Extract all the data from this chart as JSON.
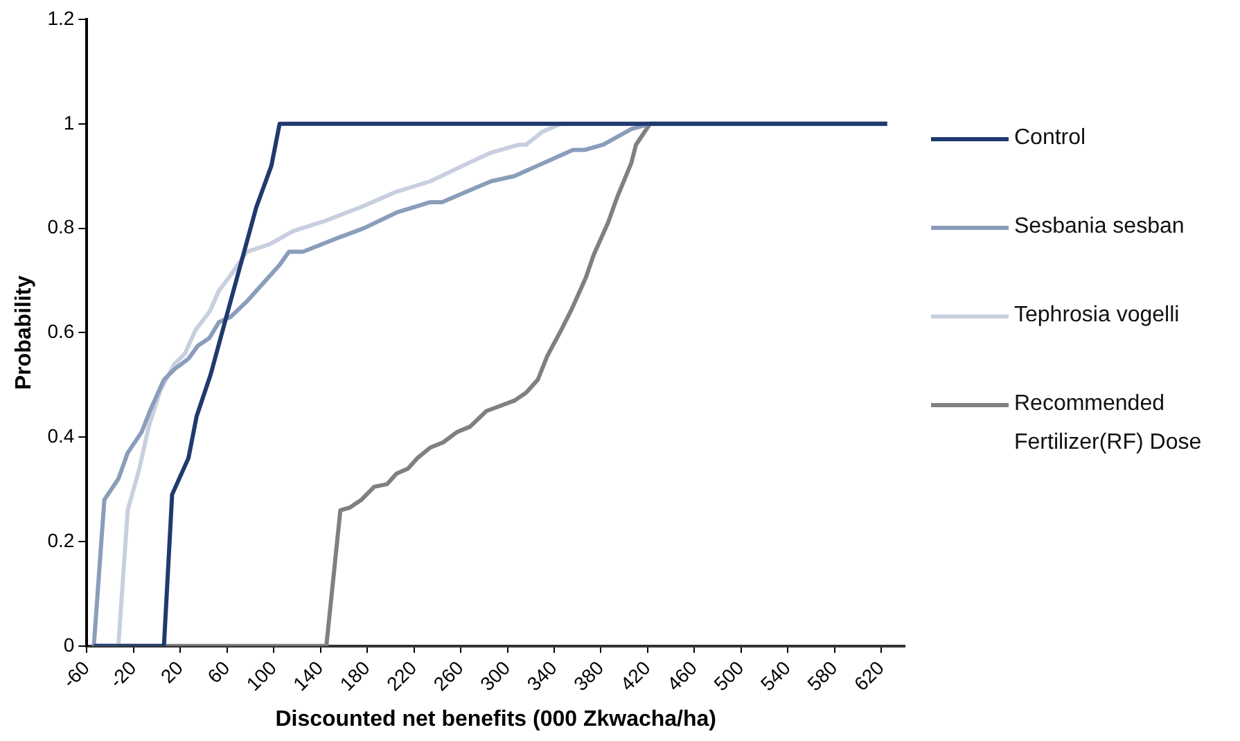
{
  "chart_data": {
    "type": "line",
    "xlabel": "Discounted net benefits (000 Zkwacha/ha)",
    "ylabel": "Probability",
    "xlim": [
      -60,
      640
    ],
    "xticks": [
      -60,
      -20,
      20,
      60,
      100,
      140,
      180,
      220,
      260,
      300,
      340,
      380,
      420,
      460,
      500,
      540,
      580,
      620
    ],
    "ylim": [
      0,
      1.2
    ],
    "yticks": [
      0,
      0.2,
      0.4,
      0.6,
      0.8,
      1,
      1.2
    ],
    "grid": false,
    "legend": "right",
    "marker": "none",
    "line_style": "solid",
    "series": [
      {
        "name": "Control",
        "color": "#1f3a6e",
        "x": [
          -54,
          6,
          13,
          27,
          34,
          46,
          63,
          85,
          98,
          105,
          625
        ],
        "values": [
          0,
          0,
          0.29,
          0.36,
          0.44,
          0.52,
          0.66,
          0.84,
          0.92,
          1,
          1
        ]
      },
      {
        "name": "Sesbania sesban",
        "color": "#8a9dbb",
        "x": [
          -54,
          -45,
          -33,
          -25,
          -13,
          -6,
          6,
          15,
          27,
          35,
          45,
          53,
          63,
          77,
          105,
          113,
          125,
          153,
          177,
          205,
          234,
          244,
          265,
          286,
          306,
          326,
          346,
          356,
          366,
          382,
          406,
          422,
          625
        ],
        "values": [
          0,
          0.28,
          0.32,
          0.37,
          0.41,
          0.45,
          0.51,
          0.53,
          0.55,
          0.575,
          0.59,
          0.62,
          0.63,
          0.66,
          0.73,
          0.755,
          0.755,
          0.78,
          0.8,
          0.83,
          0.85,
          0.85,
          0.87,
          0.89,
          0.9,
          0.92,
          0.94,
          0.95,
          0.95,
          0.96,
          0.99,
          1,
          1
        ]
      },
      {
        "name": "Tephrosia vogelli",
        "color": "#c8cfdf",
        "x": [
          -54,
          -33,
          -25,
          -15,
          -7,
          3,
          15,
          24,
          33,
          45,
          53,
          63,
          77,
          97,
          117,
          145,
          174,
          205,
          234,
          262,
          286,
          310,
          316,
          330,
          346,
          625
        ],
        "values": [
          0,
          0,
          0.26,
          0.34,
          0.42,
          0.49,
          0.54,
          0.56,
          0.605,
          0.64,
          0.68,
          0.71,
          0.755,
          0.77,
          0.795,
          0.815,
          0.84,
          0.87,
          0.89,
          0.92,
          0.945,
          0.96,
          0.96,
          0.985,
          1,
          1
        ]
      },
      {
        "name": "Recommended Fertilizer(RF) Dose",
        "color": "#808080",
        "x": [
          -54,
          145,
          157,
          165,
          175,
          186,
          197,
          205,
          215,
          223,
          234,
          245,
          257,
          268,
          282,
          294,
          306,
          316,
          326,
          334,
          346,
          355,
          367,
          374,
          386,
          394,
          406,
          410,
          422,
          625
        ],
        "values": [
          0,
          0,
          0.26,
          0.265,
          0.28,
          0.305,
          0.31,
          0.33,
          0.34,
          0.36,
          0.38,
          0.39,
          0.41,
          0.42,
          0.45,
          0.46,
          0.47,
          0.485,
          0.51,
          0.555,
          0.605,
          0.645,
          0.705,
          0.75,
          0.81,
          0.86,
          0.925,
          0.96,
          1,
          1
        ]
      }
    ]
  }
}
